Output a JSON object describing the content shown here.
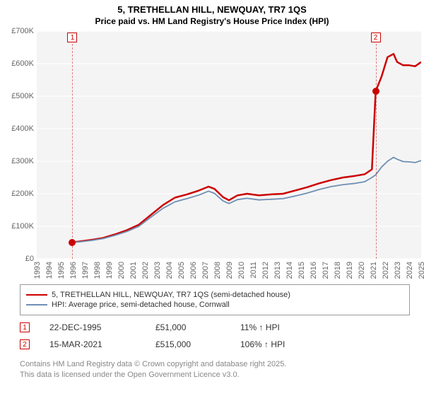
{
  "titles": {
    "line1": "5, TRETHELLAN HILL, NEWQUAY, TR7 1QS",
    "line2": "Price paid vs. HM Land Registry's House Price Index (HPI)"
  },
  "chart": {
    "type": "line",
    "background_color": "#f4f4f4",
    "grid_color": "#ffffff",
    "axis_label_color": "#666666",
    "axis_label_fontsize": 11,
    "y": {
      "min": 0,
      "max": 700000,
      "tick_step": 100000,
      "tick_labels": [
        "£0",
        "£100K",
        "£200K",
        "£300K",
        "£400K",
        "£500K",
        "£600K",
        "£700K"
      ]
    },
    "x": {
      "min": 1993,
      "max": 2025,
      "tick_step": 1,
      "tick_labels": [
        "1993",
        "1994",
        "1995",
        "1996",
        "1997",
        "1998",
        "1999",
        "2000",
        "2001",
        "2002",
        "2003",
        "2004",
        "2005",
        "2006",
        "2007",
        "2008",
        "2009",
        "2010",
        "2011",
        "2012",
        "2013",
        "2014",
        "2015",
        "2016",
        "2017",
        "2018",
        "2019",
        "2020",
        "2021",
        "2022",
        "2023",
        "2024",
        "2025"
      ]
    },
    "series": [
      {
        "name": "price_paid",
        "color": "#cc0000",
        "width": 2.5,
        "points": [
          [
            1995.97,
            51000
          ],
          [
            1996.5,
            53000
          ],
          [
            1997.5,
            58000
          ],
          [
            1998.5,
            64000
          ],
          [
            1999.5,
            75000
          ],
          [
            2000.5,
            88000
          ],
          [
            2001.5,
            105000
          ],
          [
            2002.5,
            135000
          ],
          [
            2003.5,
            165000
          ],
          [
            2004.5,
            188000
          ],
          [
            2005.5,
            198000
          ],
          [
            2006.5,
            210000
          ],
          [
            2007.3,
            222000
          ],
          [
            2007.8,
            215000
          ],
          [
            2008.5,
            190000
          ],
          [
            2009.0,
            180000
          ],
          [
            2009.7,
            195000
          ],
          [
            2010.5,
            200000
          ],
          [
            2011.5,
            195000
          ],
          [
            2012.5,
            198000
          ],
          [
            2013.5,
            200000
          ],
          [
            2014.5,
            210000
          ],
          [
            2015.5,
            220000
          ],
          [
            2016.5,
            232000
          ],
          [
            2017.5,
            242000
          ],
          [
            2018.5,
            250000
          ],
          [
            2019.5,
            255000
          ],
          [
            2020.3,
            260000
          ],
          [
            2020.9,
            275000
          ],
          [
            2021.21,
            515000
          ],
          [
            2021.7,
            560000
          ],
          [
            2022.2,
            620000
          ],
          [
            2022.7,
            630000
          ],
          [
            2023.0,
            605000
          ],
          [
            2023.5,
            595000
          ],
          [
            2024.0,
            595000
          ],
          [
            2024.5,
            592000
          ],
          [
            2025.0,
            605000
          ]
        ]
      },
      {
        "name": "hpi",
        "color": "#6f8fb3",
        "width": 1.8,
        "points": [
          [
            1995.97,
            51000
          ],
          [
            1996.5,
            52000
          ],
          [
            1997.5,
            56000
          ],
          [
            1998.5,
            62000
          ],
          [
            1999.5,
            72000
          ],
          [
            2000.5,
            84000
          ],
          [
            2001.5,
            100000
          ],
          [
            2002.5,
            128000
          ],
          [
            2003.5,
            155000
          ],
          [
            2004.5,
            175000
          ],
          [
            2005.5,
            185000
          ],
          [
            2006.5,
            196000
          ],
          [
            2007.3,
            208000
          ],
          [
            2007.8,
            201000
          ],
          [
            2008.5,
            178000
          ],
          [
            2009.0,
            170000
          ],
          [
            2009.7,
            182000
          ],
          [
            2010.5,
            186000
          ],
          [
            2011.5,
            181000
          ],
          [
            2012.5,
            183000
          ],
          [
            2013.5,
            185000
          ],
          [
            2014.5,
            193000
          ],
          [
            2015.5,
            202000
          ],
          [
            2016.5,
            213000
          ],
          [
            2017.5,
            222000
          ],
          [
            2018.5,
            228000
          ],
          [
            2019.5,
            232000
          ],
          [
            2020.3,
            237000
          ],
          [
            2020.9,
            250000
          ],
          [
            2021.21,
            258000
          ],
          [
            2021.7,
            282000
          ],
          [
            2022.2,
            300000
          ],
          [
            2022.7,
            312000
          ],
          [
            2023.0,
            306000
          ],
          [
            2023.5,
            299000
          ],
          [
            2024.0,
            298000
          ],
          [
            2024.5,
            296000
          ],
          [
            2025.0,
            302000
          ]
        ]
      }
    ],
    "markers": [
      {
        "id": "1",
        "x": 1995.97,
        "y": 51000,
        "dot_color": "#cc0000"
      },
      {
        "id": "2",
        "x": 2021.21,
        "y": 515000,
        "dot_color": "#cc0000"
      }
    ]
  },
  "legend": {
    "items": [
      {
        "color": "#cc0000",
        "label": "5, TRETHELLAN HILL, NEWQUAY, TR7 1QS (semi-detached house)"
      },
      {
        "color": "#6f8fb3",
        "label": "HPI: Average price, semi-detached house, Cornwall"
      }
    ]
  },
  "transactions": [
    {
      "id": "1",
      "date": "22-DEC-1995",
      "price": "£51,000",
      "pct": "11% ↑ HPI"
    },
    {
      "id": "2",
      "date": "15-MAR-2021",
      "price": "£515,000",
      "pct": "106% ↑ HPI"
    }
  ],
  "footer": {
    "line1": "Contains HM Land Registry data © Crown copyright and database right 2025.",
    "line2": "This data is licensed under the Open Government Licence v3.0."
  }
}
